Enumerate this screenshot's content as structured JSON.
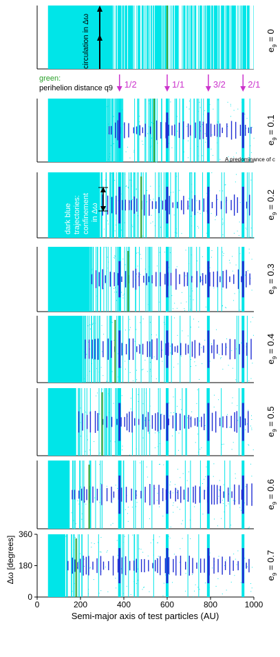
{
  "figure": {
    "green_label_line1": "green:",
    "green_label_line2": "perihelion distance q9",
    "annotation_circulation": "circulation in Δω",
    "annotation_confinement": [
      "dark blue",
      "trajectories:",
      "confinement",
      "in Δω"
    ],
    "annotation_predominance": "A predominance of c",
    "colors": {
      "circulation": "#00e5e8",
      "confined": "#1f2dd4",
      "perihelion_line": "#2aa02a",
      "resonance_arrow": "#cc33cc",
      "axis": "#000000",
      "background": "#ffffff"
    }
  },
  "chart_data": {
    "type": "scatter",
    "xlabel": "Semi-major axis of test particles (AU)",
    "ylabel": "Δω [degrees]",
    "xlim": [
      0,
      1000
    ],
    "xticks": [
      "0",
      "200",
      "400",
      "600",
      "800",
      "1000"
    ],
    "ylim": [
      0,
      360
    ],
    "yticks": [
      "0",
      "180",
      "360"
    ],
    "resonances": [
      {
        "label": "1/2",
        "a": 380
      },
      {
        "label": "1/1",
        "a": 600
      },
      {
        "label": "3/2",
        "a": 790
      },
      {
        "label": "2/1",
        "a": 950
      }
    ],
    "panels": [
      {
        "label_e": "e",
        "label_sub": "9",
        "label_val": " = 0",
        "q9": 600,
        "cyan_full": 1000
      },
      {
        "label_e": "e",
        "label_sub": "9",
        "label_val": " = 0.1",
        "q9": 540,
        "cyan_full": 320
      },
      {
        "label_e": "e",
        "label_sub": "9",
        "label_val": " = 0.2",
        "q9": 480,
        "cyan_full": 290
      },
      {
        "label_e": "e",
        "label_sub": "9",
        "label_val": " = 0.3",
        "q9": 420,
        "cyan_full": 240
      },
      {
        "label_e": "e",
        "label_sub": "9",
        "label_val": " = 0.4",
        "q9": 360,
        "cyan_full": 210
      },
      {
        "label_e": "e",
        "label_sub": "9",
        "label_val": " = 0.5",
        "q9": 300,
        "cyan_full": 180
      },
      {
        "label_e": "e",
        "label_sub": "9",
        "label_val": " = 0.6",
        "q9": 240,
        "cyan_full": 150
      },
      {
        "label_e": "e",
        "label_sub": "9",
        "label_val": " = 0.7",
        "q9": 180,
        "cyan_full": 130
      }
    ]
  }
}
